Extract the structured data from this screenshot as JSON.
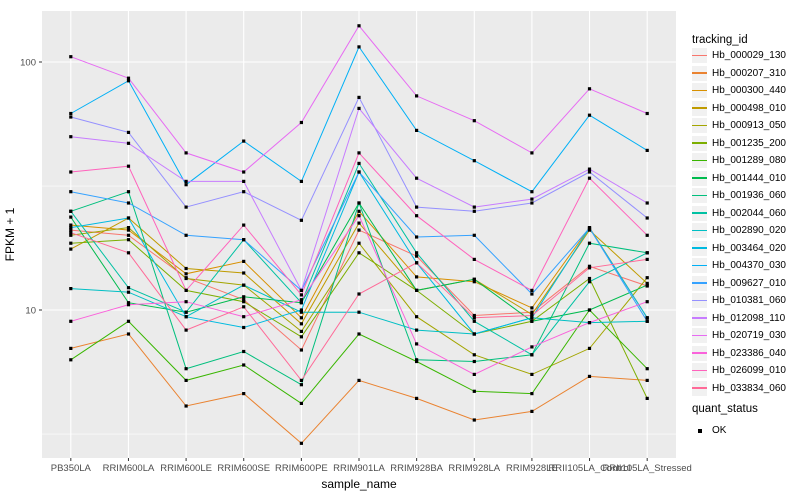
{
  "figure": {
    "panel_bg": "#EBEBEB",
    "grid_color": "#FFFFFF",
    "tick_text_color": "#4D4D4D",
    "axis_title_color": "#000000",
    "point_color": "#000000"
  },
  "chart_data": {
    "type": "line",
    "title": "",
    "xlabel": "sample_name",
    "ylabel": "FPKM + 1",
    "y_scale": "log10",
    "y_tick_labels": [
      "100",
      "10"
    ],
    "y_tick_values": [
      100,
      10
    ],
    "y_minor_values": [
      31.6,
      3.16
    ],
    "ylim_log": [
      2.53,
      160
    ],
    "grid": "on",
    "legend_position": "right",
    "x_categories": [
      "PB350LA",
      "RRIM600LA",
      "RRIM600LE",
      "RRIM600SE",
      "RRIM600PE",
      "RRIM901LA",
      "RRIM928BA",
      "RRIM928LA",
      "RRIM928LE",
      "RRII105LA_Control",
      "RRII105LA_Stressed"
    ],
    "series": [
      {
        "name": "Hb_000029_130",
        "color": "#F8766D",
        "values": [
          21,
          20,
          13.5,
          11,
          6.9,
          21,
          16.5,
          9.5,
          9.8,
          15,
          12.5
        ]
      },
      {
        "name": "Hb_000207_310",
        "color": "#EA8331",
        "values": [
          7,
          8,
          4.1,
          4.6,
          2.9,
          5.2,
          4.4,
          3.6,
          3.9,
          5.4,
          5.2
        ]
      },
      {
        "name": "Hb_000300_440",
        "color": "#D89000",
        "values": [
          22,
          21,
          14,
          15.7,
          9.3,
          25,
          13.6,
          13,
          10.2,
          21.5,
          9.3
        ]
      },
      {
        "name": "Hb_000498_010",
        "color": "#C09B00",
        "values": [
          17.6,
          23.5,
          14.7,
          14.1,
          8.8,
          22.4,
          12,
          13.3,
          9.6,
          21,
          12.8
        ]
      },
      {
        "name": "Hb_000913_050",
        "color": "#A3A500",
        "values": [
          20,
          21.5,
          13.4,
          12.6,
          8.2,
          18.6,
          9.4,
          6.6,
          5.5,
          7,
          13.5
        ]
      },
      {
        "name": "Hb_001235_200",
        "color": "#7CAE00",
        "values": [
          18.6,
          19.2,
          12,
          10.8,
          7.8,
          17,
          12,
          8,
          9,
          13.4,
          4.4
        ]
      },
      {
        "name": "Hb_001289_080",
        "color": "#39B600",
        "values": [
          6.3,
          9,
          5.2,
          6,
          4.2,
          8,
          6.2,
          4.7,
          4.6,
          10,
          5.8
        ]
      },
      {
        "name": "Hb_001444_010",
        "color": "#00BB4E",
        "values": [
          23.7,
          10.7,
          9.8,
          11.3,
          10.7,
          27,
          12,
          13.3,
          9,
          10,
          12.6
        ]
      },
      {
        "name": "Hb_001936_060",
        "color": "#00BF7D",
        "values": [
          25,
          30,
          5.8,
          6.8,
          5,
          27,
          6.3,
          6.2,
          6.6,
          18.6,
          17
        ]
      },
      {
        "name": "Hb_002044_060",
        "color": "#00C1A3",
        "values": [
          25,
          12.3,
          9.8,
          19.2,
          10.7,
          39,
          17,
          9,
          6.6,
          13,
          17
        ]
      },
      {
        "name": "Hb_002890_020",
        "color": "#00BFC4",
        "values": [
          12.2,
          11.8,
          9.4,
          12.6,
          9.8,
          9.8,
          8.3,
          8,
          9.3,
          8.9,
          9
        ]
      },
      {
        "name": "Hb_003464_020",
        "color": "#00BAE0",
        "values": [
          21.5,
          23.5,
          9.4,
          8.5,
          10,
          36,
          15.5,
          8,
          9.3,
          21.4,
          9.3
        ]
      },
      {
        "name": "Hb_004370_030",
        "color": "#00B0F6",
        "values": [
          62,
          84,
          32,
          48,
          33,
          115,
          53,
          40,
          30,
          61,
          44
        ]
      },
      {
        "name": "Hb_009627_010",
        "color": "#35A2FF",
        "values": [
          30,
          27,
          20,
          19.2,
          12,
          36,
          19.7,
          20,
          11.6,
          21.4,
          9
        ]
      },
      {
        "name": "Hb_010381_060",
        "color": "#9590FF",
        "values": [
          60,
          52,
          26,
          30,
          23,
          72,
          26,
          25,
          27,
          36,
          23.5
        ]
      },
      {
        "name": "Hb_012098_110",
        "color": "#C77CFF",
        "values": [
          50,
          47,
          33,
          33,
          12,
          65,
          34,
          26,
          28,
          37,
          27
        ]
      },
      {
        "name": "Hb_020719_030",
        "color": "#E76BF3",
        "values": [
          105,
          86,
          43,
          36,
          57,
          140,
          73,
          58,
          43,
          78,
          62
        ]
      },
      {
        "name": "Hb_023386_040",
        "color": "#FA62DB",
        "values": [
          9,
          10.5,
          10.8,
          9.4,
          11,
          24,
          7.3,
          5.5,
          7.1,
          8.9,
          10.8
        ]
      },
      {
        "name": "Hb_026099_010",
        "color": "#FF62BC",
        "values": [
          36,
          38,
          12,
          22,
          11.5,
          43,
          24,
          16,
          12,
          34,
          20
        ]
      },
      {
        "name": "Hb_033834_060",
        "color": "#FF6A98",
        "values": [
          20.5,
          17,
          8.3,
          10.3,
          5.2,
          11.6,
          15.5,
          9.3,
          9.5,
          14.8,
          16
        ]
      }
    ],
    "legend": {
      "color_title": "tracking_id",
      "shape_title": "quant_status",
      "shape_entries": [
        "OK"
      ],
      "shape_symbol": "filled-square"
    }
  }
}
